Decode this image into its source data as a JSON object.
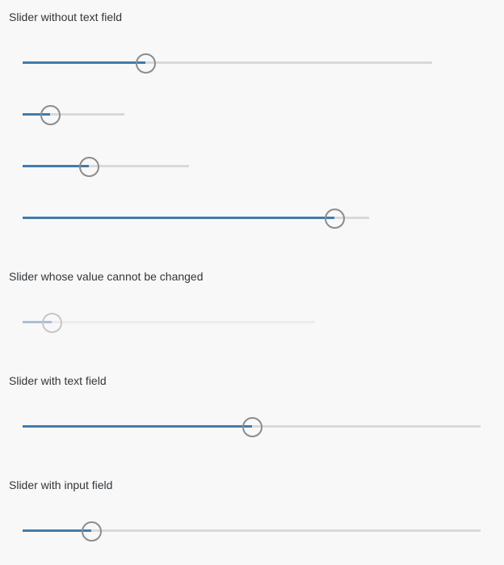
{
  "sections": {
    "without_text_field": {
      "label": "Slider without text field"
    },
    "readonly": {
      "label": "Slider whose value cannot be changed"
    },
    "with_text_field": {
      "label": "Slider with text field"
    },
    "with_input_field": {
      "label": "Slider with input field"
    }
  },
  "sliders": [
    {
      "name": "slider-1",
      "percent": 30
    },
    {
      "name": "slider-2",
      "percent": 27
    },
    {
      "name": "slider-3",
      "percent": 40
    },
    {
      "name": "slider-4",
      "percent": 90
    },
    {
      "name": "slider-readonly",
      "percent": 10,
      "enabled": false
    },
    {
      "name": "slider-text-field",
      "percent": 50
    },
    {
      "name": "slider-input-field",
      "percent": 15
    }
  ],
  "colors": {
    "progress": "#427cac",
    "track": "#d9d9d9",
    "handle_border": "#8c8c8c",
    "background": "#f8f8f8"
  }
}
